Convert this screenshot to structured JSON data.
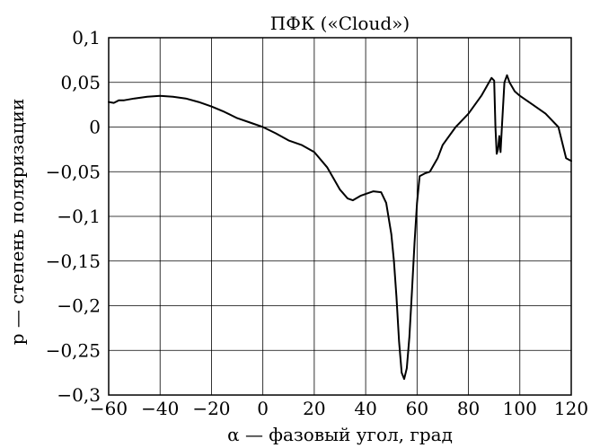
{
  "chart_data": {
    "type": "line",
    "title": "ПФК («Cloud»)",
    "xlabel": "α — фазовый угол, град",
    "ylabel": "p — степень поляризации",
    "xlim": [
      -60,
      120
    ],
    "ylim": [
      -0.3,
      0.1
    ],
    "grid": true,
    "x_ticks": [
      -60,
      -40,
      -20,
      0,
      20,
      40,
      60,
      80,
      100,
      120
    ],
    "x_tick_labels": [
      "−60",
      "−40",
      "−20",
      "0",
      "20",
      "40",
      "60",
      "80",
      "100",
      "120"
    ],
    "y_ticks": [
      0.1,
      0.05,
      0,
      -0.05,
      -0.1,
      -0.15,
      -0.2,
      -0.25,
      -0.3
    ],
    "y_tick_labels": [
      "0,1",
      "0,05",
      "0",
      "−0,05",
      "−0,1",
      "−0,15",
      "−0,2",
      "−0,25",
      "−0,3"
    ],
    "series": [
      {
        "x": [
          -60,
          -58,
          -56,
          -54,
          -50,
          -45,
          -40,
          -35,
          -30,
          -25,
          -20,
          -15,
          -10,
          -5,
          0,
          5,
          10,
          15,
          20,
          25,
          28,
          30,
          33,
          35,
          38,
          40,
          43,
          46,
          48,
          50,
          51,
          52,
          53,
          54,
          55,
          56,
          57,
          58,
          59,
          60,
          61,
          63,
          65,
          68,
          70,
          75,
          80,
          85,
          87,
          88,
          89,
          90,
          90.5,
          91,
          91.5,
          92,
          92.5,
          93,
          94,
          95,
          96,
          98,
          100,
          105,
          110,
          115,
          118,
          120
        ],
        "y": [
          0.028,
          0.027,
          0.03,
          0.03,
          0.032,
          0.034,
          0.035,
          0.034,
          0.032,
          0.028,
          0.023,
          0.017,
          0.01,
          0.005,
          0.0,
          -0.007,
          -0.015,
          -0.02,
          -0.028,
          -0.045,
          -0.06,
          -0.07,
          -0.08,
          -0.082,
          -0.077,
          -0.075,
          -0.072,
          -0.073,
          -0.085,
          -0.12,
          -0.15,
          -0.19,
          -0.24,
          -0.275,
          -0.282,
          -0.27,
          -0.235,
          -0.185,
          -0.13,
          -0.085,
          -0.055,
          -0.052,
          -0.05,
          -0.035,
          -0.02,
          0.0,
          0.015,
          0.035,
          0.045,
          0.05,
          0.055,
          0.052,
          0.0,
          -0.03,
          -0.025,
          -0.01,
          -0.028,
          0.0,
          0.05,
          0.058,
          0.05,
          0.04,
          0.035,
          0.025,
          0.015,
          0.0,
          -0.035,
          -0.038
        ]
      }
    ]
  }
}
